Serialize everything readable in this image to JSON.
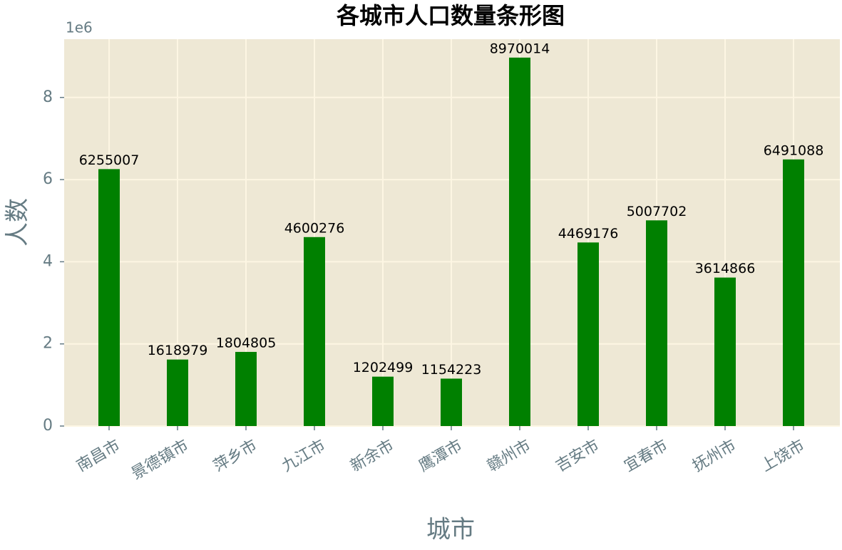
{
  "chart_data": {
    "type": "bar",
    "title": "各城市人口数量条形图",
    "x_label": "城市",
    "y_label": "人数",
    "y_offset_label": "1e6",
    "categories": [
      "南昌市",
      "景德镇市",
      "萍乡市",
      "九江市",
      "新余市",
      "鹰潭市",
      "赣州市",
      "吉安市",
      "宜春市",
      "抚州市",
      "上饶市"
    ],
    "values": [
      6255007,
      1618979,
      1804805,
      4600276,
      1202499,
      1154223,
      8970014,
      4469176,
      5007702,
      3614866,
      6491088
    ],
    "color": "#008000",
    "ylim": [
      0,
      9418515
    ],
    "yticks": [
      {
        "value": 0,
        "label": "0"
      },
      {
        "value": 2000000,
        "label": "2"
      },
      {
        "value": 4000000,
        "label": "4"
      },
      {
        "value": 6000000,
        "label": "6"
      },
      {
        "value": 8000000,
        "label": "8"
      }
    ],
    "grid": true
  }
}
